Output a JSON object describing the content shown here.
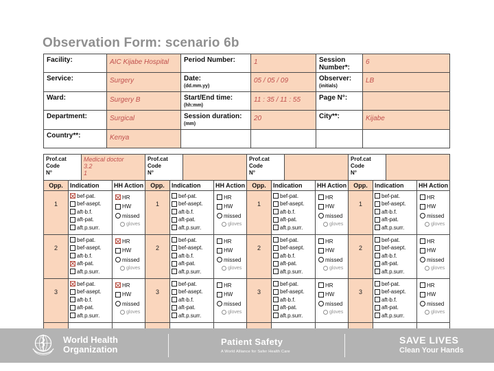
{
  "slide_title": "Observation Form: scenario 6b",
  "colors": {
    "accent_peach": "#FAD6BD",
    "handwriting_red": "#C0504D",
    "checked_mark_red": "#B4483B",
    "footer_gray": "#B3B3B3",
    "title_gray": "#8F8F8F"
  },
  "header": {
    "rows": [
      {
        "cells": [
          {
            "label": "Facility:"
          },
          {
            "value": "AIC Kijabe Hospital"
          },
          {
            "label": "Period Number:"
          },
          {
            "value": "1"
          },
          {
            "label": "Session Number*:"
          },
          {
            "value": "6"
          }
        ]
      },
      {
        "cells": [
          {
            "label": "Service:"
          },
          {
            "value": "Surgery"
          },
          {
            "label": "Date:",
            "sub": "(dd.mm.yy)"
          },
          {
            "value": "05 / 05 / 09"
          },
          {
            "label": "Observer:",
            "sub": "(initials)"
          },
          {
            "value": "LB"
          }
        ]
      },
      {
        "cells": [
          {
            "label": "Ward:"
          },
          {
            "value": "Surgery B"
          },
          {
            "label": "Start/End time:",
            "sub": "(hh:mm)"
          },
          {
            "value": "11 : 35 / 11 : 55"
          },
          {
            "label": "Page N°:"
          },
          {
            "value": ""
          }
        ]
      },
      {
        "cells": [
          {
            "label": "Department:"
          },
          {
            "value": "Surgical"
          },
          {
            "label": "Session duration:",
            "sub": "(mm)"
          },
          {
            "value": "20"
          },
          {
            "label": "City**:"
          },
          {
            "value": "Kijabe"
          }
        ]
      },
      {
        "cells": [
          {
            "label": "Country**:"
          },
          {
            "value": "Kenya"
          },
          {
            "label": ""
          },
          {
            "value": "",
            "plain": true
          },
          {
            "label": ""
          },
          {
            "value": "",
            "plain": true
          }
        ]
      }
    ]
  },
  "profcat": {
    "groups": [
      {
        "label_lines": [
          "Prof.cat",
          "Code",
          "N°"
        ],
        "value_lines": [
          "Medical doctor",
          "3.2",
          "1"
        ]
      },
      {
        "label_lines": [
          "Prof.cat",
          "Code",
          "N°"
        ],
        "value_lines": []
      },
      {
        "label_lines": [
          "Prof.cat",
          "Code",
          "N°"
        ],
        "value_lines": []
      },
      {
        "label_lines": [
          "Prof.cat",
          "Code",
          "N°"
        ],
        "value_lines": []
      }
    ]
  },
  "grid": {
    "col_headers": [
      "Opp.",
      "Indication",
      "HH Action"
    ],
    "indication_labels": [
      "bef-pat.",
      "bef-asept.",
      "aft-b.f.",
      "aft-pat.",
      "aft.p.surr."
    ],
    "action_labels": [
      "HR",
      "HW",
      "missed",
      "gloves"
    ],
    "groups": [
      {
        "rows": [
          {
            "opp": "1",
            "indications_checked": [
              0
            ],
            "actions_checked": [
              "HR"
            ]
          },
          {
            "opp": "2",
            "indications_checked": [
              3
            ],
            "actions_checked": [
              "HR"
            ]
          },
          {
            "opp": "3",
            "indications_checked": [
              0
            ],
            "actions_checked": [
              "HR"
            ]
          }
        ]
      },
      {
        "rows": [
          {
            "opp": "1",
            "indications_checked": [],
            "actions_checked": []
          },
          {
            "opp": "2",
            "indications_checked": [],
            "actions_checked": []
          },
          {
            "opp": "3",
            "indications_checked": [],
            "actions_checked": []
          }
        ]
      },
      {
        "rows": [
          {
            "opp": "1",
            "indications_checked": [],
            "actions_checked": []
          },
          {
            "opp": "2",
            "indications_checked": [],
            "actions_checked": []
          },
          {
            "opp": "3",
            "indications_checked": [],
            "actions_checked": []
          }
        ]
      },
      {
        "rows": [
          {
            "opp": "1",
            "indications_checked": [],
            "actions_checked": []
          },
          {
            "opp": "2",
            "indications_checked": [],
            "actions_checked": []
          },
          {
            "opp": "3",
            "indications_checked": [],
            "actions_checked": []
          }
        ]
      }
    ]
  },
  "footer": {
    "who_line1": "World Health",
    "who_line2": "Organization",
    "program": "Patient Safety",
    "program_sub": "A World Alliance for Safer Health Care",
    "campaign": "SAVE LIVES",
    "campaign_sub": "Clean Your Hands"
  }
}
